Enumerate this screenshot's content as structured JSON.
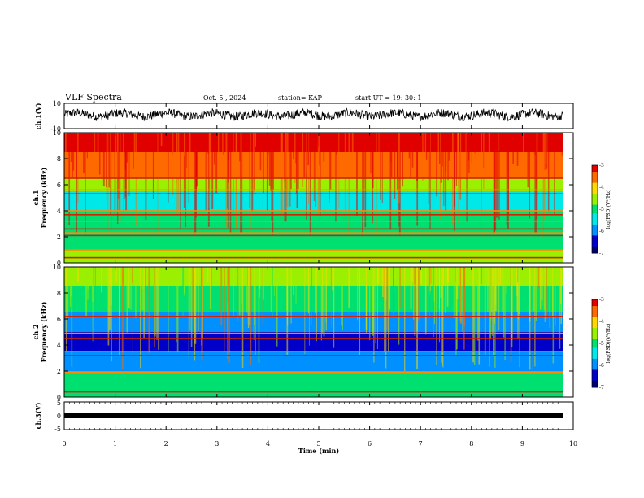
{
  "header": {
    "title": "VLF Spectra",
    "date": "Oct. 5  , 2024",
    "station": "station= KAP",
    "start": "start  UT  =   19: 30: 1"
  },
  "colorbar": {
    "label": "log(PSD)(V²/Hz)",
    "ticks": [
      "-3",
      "-4",
      "-5",
      "-6",
      "-7"
    ],
    "colors": [
      "#e00000",
      "#ff6a00",
      "#ffd800",
      "#9af000",
      "#00e070",
      "#00e8e8",
      "#0090ff",
      "#0000c8",
      "#000070"
    ]
  },
  "chart_data": [
    {
      "type": "line",
      "name": "waveform-ch1",
      "ylabel": "ch.1(V)",
      "ylim": [
        -10,
        10
      ],
      "y_ticks": [
        "10",
        "-10"
      ],
      "xlim": [
        0,
        10
      ],
      "note_series": "noisy voltage trace fluctuating roughly between -4 and 6 V over 0-9.8 min"
    },
    {
      "type": "heatmap",
      "name": "spectrogram-ch1",
      "ylabel": "ch.1\nFrequency (kHz)",
      "ylim": [
        0,
        10
      ],
      "y_ticks": [
        "0",
        "2",
        "4",
        "6",
        "8",
        "10"
      ],
      "xlim": [
        0,
        9.8
      ],
      "zlim": [
        -7,
        -3
      ],
      "bands": [
        {
          "f_from": 8.5,
          "f_to": 10,
          "level": -3.2
        },
        {
          "f_from": 6.5,
          "f_to": 8.5,
          "level": -3.7
        },
        {
          "f_from": 5.5,
          "f_to": 6.5,
          "level": -4.6
        },
        {
          "f_from": 4.0,
          "f_to": 5.5,
          "level": -5.5
        },
        {
          "f_from": 2.5,
          "f_to": 4.0,
          "level": -5.0
        },
        {
          "f_from": 1.0,
          "f_to": 2.5,
          "level": -4.8
        },
        {
          "f_from": 0,
          "f_to": 1.0,
          "level": -4.4
        }
      ],
      "lines_khz": [
        0.4,
        1.0,
        2.1,
        2.3,
        2.6,
        3.2,
        3.7,
        4.0,
        5.3,
        5.6,
        6.5
      ]
    },
    {
      "type": "heatmap",
      "name": "spectrogram-ch2",
      "ylabel": "ch.2\nFrequency (kHz)",
      "ylim": [
        0,
        10
      ],
      "y_ticks": [
        "0",
        "2",
        "4",
        "6",
        "8",
        "10"
      ],
      "xlim": [
        0,
        9.8
      ],
      "zlim": [
        -7,
        -3
      ],
      "bands": [
        {
          "f_from": 8.5,
          "f_to": 10,
          "level": -4.4
        },
        {
          "f_from": 6.5,
          "f_to": 8.5,
          "level": -5.0
        },
        {
          "f_from": 5.0,
          "f_to": 6.5,
          "level": -6.0
        },
        {
          "f_from": 3.5,
          "f_to": 5.0,
          "level": -6.3
        },
        {
          "f_from": 2.0,
          "f_to": 3.5,
          "level": -6.0
        },
        {
          "f_from": 0.5,
          "f_to": 2.0,
          "level": -5.2
        },
        {
          "f_from": 0,
          "f_to": 0.5,
          "level": -4.8
        }
      ],
      "lines_khz": [
        0.4,
        1.9,
        3.2,
        3.5,
        4.5,
        4.9,
        6.2
      ]
    },
    {
      "type": "line",
      "name": "waveform-ch3",
      "ylabel": "ch.3(V)",
      "ylim": [
        -5,
        5
      ],
      "y_ticks": [
        "5",
        "0",
        "-5"
      ],
      "xlim": [
        0,
        10
      ],
      "values_y": [
        0,
        0
      ],
      "values_x": [
        0,
        9.8
      ]
    }
  ],
  "x_axis": {
    "label": "Time  (min)",
    "ticks": [
      "0",
      "1",
      "2",
      "3",
      "4",
      "5",
      "6",
      "7",
      "8",
      "9",
      "10"
    ]
  }
}
